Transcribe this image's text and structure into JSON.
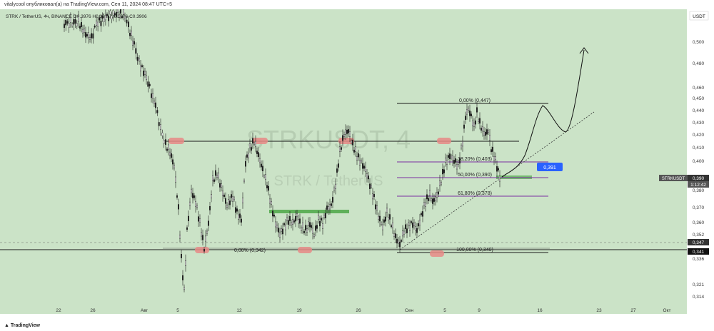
{
  "header": {
    "publish_line": "vitalycool опубликовал(а) на TradingView.com, Сен 11, 2024 08:47 UTC+5"
  },
  "chart_title": "STRK / TetherUS, 4ч, BINANCE  O0.3976 H0.3981 L0.3906 C0.3906",
  "watermark": {
    "symbol": "STRKUSDT, 4",
    "name": "STRK / TetherUS"
  },
  "currency_badge": "USDT",
  "footer": {
    "brand": "TradingView"
  },
  "chart_data": {
    "type": "line",
    "price_label": {
      "symbol": "STRKUSDT",
      "price": "0,390",
      "countdown": "1:12:42"
    },
    "y_ticks": [
      "0,500",
      "0,480",
      "0,460",
      "0,450",
      "0,440",
      "0,430",
      "0,420",
      "0,410",
      "0,400",
      "0,390",
      "0,380",
      "0,370",
      "0,360",
      "0,352",
      "0,347",
      "0,341",
      "0,336",
      "0,321",
      "0,314"
    ],
    "x_ticks": [
      "22",
      "26",
      "Авг",
      "5",
      "12",
      "19",
      "26",
      "Сен",
      "5",
      "9",
      "16",
      "23",
      "27",
      "Окт"
    ],
    "fib_levels": [
      {
        "label": "0,00% (0,447)",
        "price": 0.447
      },
      {
        "label": "38,20% (0,403)",
        "price": 0.403
      },
      {
        "label": "50,00% (0,390)",
        "price": 0.39
      },
      {
        "label": "61,80% (0,378)",
        "price": 0.378
      },
      {
        "label": "100,00% (0,340)",
        "price": 0.34
      }
    ],
    "left_fib_label": "0,00% (0,342)",
    "callout": "0,391",
    "tag_347": "0,347",
    "tag_341": "0,341",
    "colors": {
      "background": "#cbe3c7",
      "candle": "#1f1f1f",
      "horizontal": "#1a1a1a",
      "fib": "#7b2fa0",
      "green_zone": "#5fb05a",
      "highlight": "#e88a86",
      "callout": "#2962ff"
    }
  }
}
